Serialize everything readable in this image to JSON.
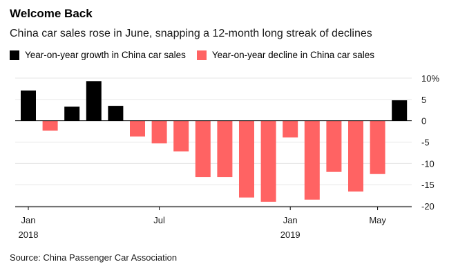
{
  "title": "Welcome Back",
  "subtitle": "China car sales rose in June, snapping a 12-month long streak of declines",
  "source": "Source: China Passenger Car Association",
  "colors": {
    "growth": "#000000",
    "decline": "#ff6363",
    "grid": "#e6e6e6",
    "zero": "#000000"
  },
  "chart_data": {
    "type": "bar",
    "legend": [
      {
        "name": "Year-on-year growth in China car sales",
        "color": "#000000"
      },
      {
        "name": "Year-on-year decline in China car sales",
        "color": "#ff6363"
      }
    ],
    "categories": [
      "Jan 2018",
      "Feb 2018",
      "Mar 2018",
      "Apr 2018",
      "May 2018",
      "Jun 2018",
      "Jul 2018",
      "Aug 2018",
      "Sep 2018",
      "Oct 2018",
      "Nov 2018",
      "Dec 2018",
      "Jan 2019",
      "Feb 2019",
      "Mar 2019",
      "Apr 2019",
      "May 2019",
      "Jun 2019"
    ],
    "values": [
      7.1,
      -2.3,
      3.3,
      9.3,
      3.5,
      -3.7,
      -5.3,
      -7.2,
      -13.2,
      -13.2,
      -18.0,
      -19.0,
      -3.9,
      -18.5,
      -12.0,
      -16.6,
      -12.5,
      4.8
    ],
    "ylim": [
      -20,
      10
    ],
    "y_ticks": [
      "10%",
      "5",
      "0",
      "-5",
      "-10",
      "-15",
      "-20"
    ],
    "x_tick_labels": [
      {
        "label": "Jan",
        "year": "2018",
        "index": 0
      },
      {
        "label": "Jul",
        "year": "",
        "index": 6
      },
      {
        "label": "Jan",
        "year": "2019",
        "index": 12
      },
      {
        "label": "May",
        "year": "",
        "index": 16
      }
    ],
    "xlabel": "",
    "ylabel": ""
  }
}
